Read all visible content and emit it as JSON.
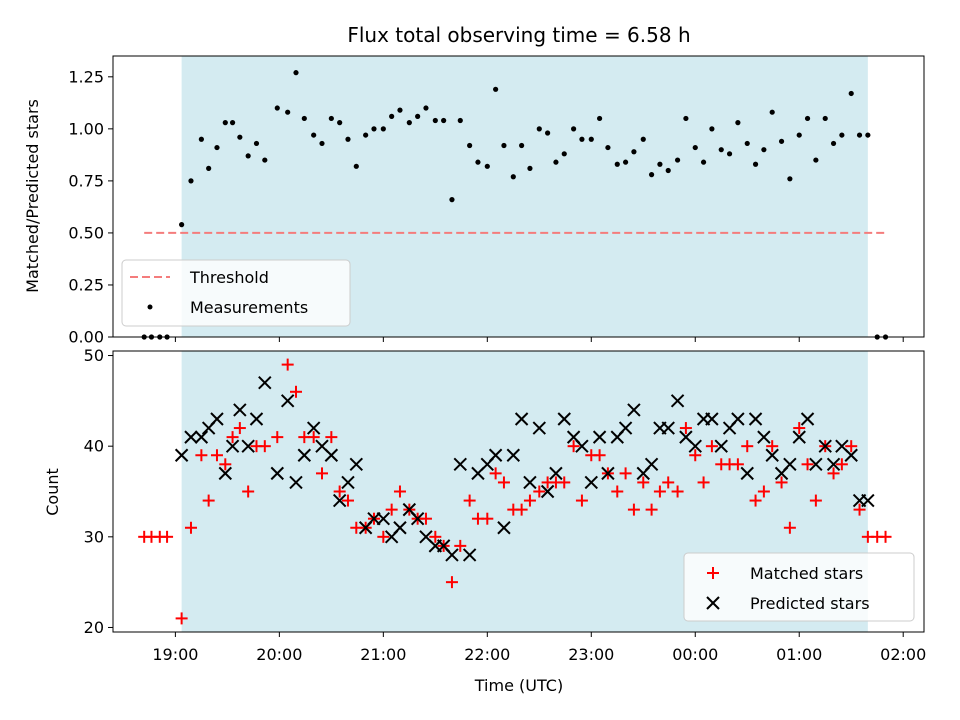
{
  "chart_data": [
    {
      "type": "scatter",
      "title": "Flux total observing time = 6.58 h",
      "xlabel": "",
      "ylabel": "Matched/Predicted stars",
      "ylim": [
        0,
        1.35
      ],
      "yticks": [
        "0.00",
        "0.25",
        "0.50",
        "0.75",
        "1.00",
        "1.25"
      ],
      "ytick_values": [
        0,
        0.25,
        0.5,
        0.75,
        1.0,
        1.25
      ],
      "xlim_hours": [
        18.4,
        26.2
      ],
      "shaded_span_hours": [
        19.06,
        25.66
      ],
      "shade_color": "#d4ebf1",
      "threshold": {
        "name": "Threshold",
        "value": 0.5,
        "x_start": 18.7,
        "x_end": 25.85,
        "color": "#f47c7c",
        "style": "dashed"
      },
      "legend": {
        "position": "lower left",
        "entries": [
          "Threshold",
          "Measurements"
        ]
      },
      "series": [
        {
          "name": "Measurements",
          "marker": "dot",
          "color": "#000000",
          "x": [
            18.7,
            18.77,
            18.85,
            18.92,
            19.06,
            19.15,
            19.25,
            19.32,
            19.4,
            19.48,
            19.55,
            19.62,
            19.7,
            19.78,
            19.86,
            19.98,
            20.08,
            20.16,
            20.24,
            20.33,
            20.41,
            20.5,
            20.58,
            20.66,
            20.74,
            20.83,
            20.91,
            21.0,
            21.08,
            21.16,
            21.25,
            21.33,
            21.41,
            21.5,
            21.58,
            21.66,
            21.74,
            21.83,
            21.91,
            22.0,
            22.08,
            22.16,
            22.25,
            22.33,
            22.41,
            22.5,
            22.58,
            22.66,
            22.74,
            22.83,
            22.91,
            23.0,
            23.08,
            23.16,
            23.25,
            23.33,
            23.41,
            23.5,
            23.58,
            23.66,
            23.74,
            23.83,
            23.91,
            24.0,
            24.08,
            24.16,
            24.25,
            24.33,
            24.41,
            24.5,
            24.58,
            24.66,
            24.74,
            24.83,
            24.91,
            25.0,
            25.08,
            25.16,
            25.25,
            25.33,
            25.41,
            25.5,
            25.58,
            25.66,
            25.75,
            25.83
          ],
          "y": [
            0.0,
            0.0,
            0.0,
            0.0,
            0.54,
            0.75,
            0.95,
            0.81,
            0.91,
            1.03,
            1.03,
            0.96,
            0.87,
            0.93,
            0.85,
            1.1,
            1.08,
            1.27,
            1.05,
            0.97,
            0.93,
            1.05,
            1.03,
            0.95,
            0.82,
            0.97,
            1.0,
            1.0,
            1.06,
            1.09,
            1.03,
            1.06,
            1.1,
            1.04,
            1.04,
            0.66,
            1.04,
            0.92,
            0.84,
            0.82,
            1.19,
            0.92,
            0.77,
            0.92,
            0.81,
            1.0,
            0.98,
            0.84,
            0.88,
            1.0,
            0.95,
            0.95,
            1.05,
            0.91,
            0.83,
            0.84,
            0.89,
            0.95,
            0.78,
            0.83,
            0.8,
            0.85,
            1.05,
            0.91,
            0.84,
            1.0,
            0.9,
            0.88,
            1.03,
            0.93,
            0.83,
            0.9,
            1.08,
            0.94,
            0.76,
            0.97,
            1.05,
            0.85,
            1.05,
            0.93,
            0.97,
            1.17,
            0.97,
            0.97,
            0.0,
            0.0
          ]
        }
      ]
    },
    {
      "type": "scatter",
      "title": "",
      "xlabel": "Time (UTC)",
      "ylabel": "Count",
      "ylim": [
        19.5,
        50.5
      ],
      "yticks": [
        "20",
        "30",
        "40",
        "50"
      ],
      "ytick_values": [
        20,
        30,
        40,
        50
      ],
      "xlim_hours": [
        18.4,
        26.2
      ],
      "xtick_hours": [
        19,
        20,
        21,
        22,
        23,
        24,
        25,
        26
      ],
      "xticks": [
        "19:00",
        "20:00",
        "21:00",
        "22:00",
        "23:00",
        "00:00",
        "01:00",
        "02:00"
      ],
      "shaded_span_hours": [
        19.06,
        25.66
      ],
      "legend": {
        "position": "lower right",
        "entries": [
          "Matched stars",
          "Predicted stars"
        ]
      },
      "series": [
        {
          "name": "Matched stars",
          "marker": "plus",
          "color": "#ff0000",
          "x": [
            18.7,
            18.77,
            18.85,
            18.92,
            19.06,
            19.15,
            19.25,
            19.32,
            19.4,
            19.48,
            19.55,
            19.62,
            19.7,
            19.78,
            19.86,
            19.98,
            20.08,
            20.16,
            20.24,
            20.33,
            20.41,
            20.5,
            20.58,
            20.66,
            20.74,
            20.83,
            20.91,
            21.0,
            21.08,
            21.16,
            21.25,
            21.33,
            21.41,
            21.5,
            21.58,
            21.66,
            21.74,
            21.83,
            21.91,
            22.0,
            22.08,
            22.16,
            22.25,
            22.33,
            22.41,
            22.5,
            22.58,
            22.66,
            22.74,
            22.83,
            22.91,
            23.0,
            23.08,
            23.16,
            23.25,
            23.33,
            23.41,
            23.5,
            23.58,
            23.66,
            23.74,
            23.83,
            23.91,
            24.0,
            24.08,
            24.16,
            24.25,
            24.33,
            24.41,
            24.5,
            24.58,
            24.66,
            24.74,
            24.83,
            24.91,
            25.0,
            25.08,
            25.16,
            25.25,
            25.33,
            25.41,
            25.5,
            25.58,
            25.66,
            25.75,
            25.83
          ],
          "y": [
            30,
            30,
            30,
            30,
            21,
            31,
            39,
            34,
            39,
            38,
            41,
            42,
            35,
            40,
            40,
            41,
            49,
            46,
            41,
            41,
            37,
            41,
            35,
            34,
            31,
            31,
            32,
            30,
            33,
            35,
            33,
            32,
            32,
            30,
            29,
            25,
            29,
            34,
            32,
            32,
            37,
            36,
            33,
            33,
            34,
            35,
            36,
            36,
            36,
            40,
            34,
            39,
            39,
            37,
            35,
            37,
            33,
            36,
            33,
            35,
            36,
            35,
            42,
            39,
            36,
            40,
            38,
            38,
            38,
            40,
            34,
            35,
            40,
            36,
            31,
            42,
            38,
            34,
            40,
            37,
            38,
            40,
            33,
            30,
            30,
            30
          ]
        },
        {
          "name": "Predicted stars",
          "marker": "x",
          "color": "#000000",
          "x": [
            19.06,
            19.15,
            19.25,
            19.32,
            19.4,
            19.48,
            19.55,
            19.62,
            19.7,
            19.78,
            19.86,
            19.98,
            20.08,
            20.16,
            20.24,
            20.33,
            20.41,
            20.5,
            20.58,
            20.66,
            20.74,
            20.83,
            20.91,
            21.0,
            21.08,
            21.16,
            21.25,
            21.33,
            21.41,
            21.5,
            21.58,
            21.66,
            21.74,
            21.83,
            21.91,
            22.0,
            22.08,
            22.16,
            22.25,
            22.33,
            22.41,
            22.5,
            22.58,
            22.66,
            22.74,
            22.83,
            22.91,
            23.0,
            23.08,
            23.16,
            23.25,
            23.33,
            23.41,
            23.5,
            23.58,
            23.66,
            23.74,
            23.83,
            23.91,
            24.0,
            24.08,
            24.16,
            24.25,
            24.33,
            24.41,
            24.5,
            24.58,
            24.66,
            24.74,
            24.83,
            24.91,
            25.0,
            25.08,
            25.16,
            25.25,
            25.33,
            25.41,
            25.5,
            25.58,
            25.66
          ],
          "y": [
            39,
            41,
            41,
            42,
            43,
            37,
            40,
            44,
            40,
            43,
            47,
            37,
            45,
            36,
            39,
            42,
            40,
            39,
            34,
            36,
            38,
            31,
            32,
            32,
            30,
            31,
            33,
            32,
            30,
            29,
            29,
            28,
            38,
            28,
            37,
            38,
            39,
            31,
            39,
            43,
            36,
            42,
            35,
            37,
            43,
            41,
            40,
            36,
            41,
            37,
            41,
            42,
            44,
            37,
            38,
            42,
            42,
            45,
            41,
            40,
            43,
            43,
            40,
            42,
            43,
            37,
            43,
            41,
            39,
            37,
            38,
            41,
            43,
            38,
            40,
            38,
            40,
            39,
            34,
            34
          ]
        }
      ]
    }
  ]
}
